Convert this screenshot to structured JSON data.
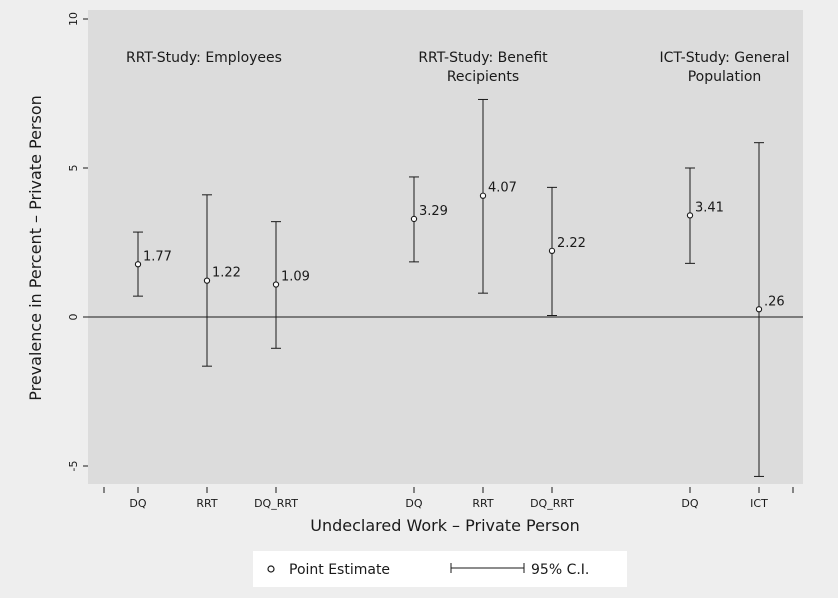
{
  "chart_data": {
    "type": "errorbar",
    "xlabel": "Undeclared Work – Private Person",
    "ylabel": "Prevalence in Percent – Private Person",
    "ylim": [
      -5,
      10
    ],
    "yticks": [
      -5,
      0,
      5,
      10
    ],
    "reference_line_y": 0,
    "grid": false,
    "legend_position": "bottom",
    "legend": {
      "point": "Point Estimate",
      "interval": "95% C.I."
    },
    "groups": [
      {
        "label_lines": [
          "RRT-Study: Employees"
        ],
        "align": "left"
      },
      {
        "label_lines": [
          "RRT-Study: Benefit",
          "Recipients"
        ],
        "align": "center"
      },
      {
        "label_lines": [
          "ICT-Study: General",
          "Population"
        ],
        "align": "center"
      }
    ],
    "points": [
      {
        "group": 0,
        "category": "DQ",
        "estimate": 1.77,
        "label": "1.77",
        "lower": 0.7,
        "upper": 2.85
      },
      {
        "group": 0,
        "category": "RRT",
        "estimate": 1.22,
        "label": "1.22",
        "lower": -1.65,
        "upper": 4.1
      },
      {
        "group": 0,
        "category": "DQ_RRT",
        "estimate": 1.09,
        "label": "1.09",
        "lower": -1.05,
        "upper": 3.2
      },
      {
        "group": 1,
        "category": "DQ",
        "estimate": 3.29,
        "label": "3.29",
        "lower": 1.85,
        "upper": 4.7
      },
      {
        "group": 1,
        "category": "RRT",
        "estimate": 4.07,
        "label": "4.07",
        "lower": 0.8,
        "upper": 7.3
      },
      {
        "group": 1,
        "category": "DQ_RRT",
        "estimate": 2.22,
        "label": "2.22",
        "lower": 0.05,
        "upper": 4.35
      },
      {
        "group": 2,
        "category": "DQ",
        "estimate": 3.41,
        "label": "3.41",
        "lower": 1.8,
        "upper": 5.0
      },
      {
        "group": 2,
        "category": "ICT",
        "estimate": 0.26,
        "label": ".26",
        "lower": -5.35,
        "upper": 5.85
      }
    ]
  }
}
